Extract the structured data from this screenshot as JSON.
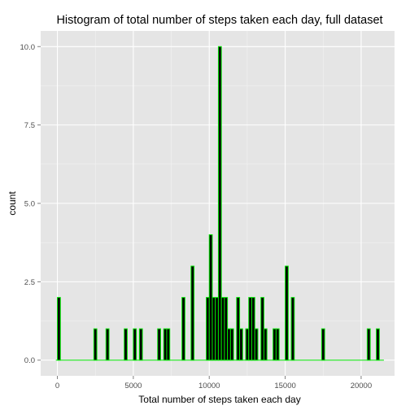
{
  "chart_data": {
    "type": "bar",
    "title": "Histogram of total number of steps taken each day, full dataset",
    "xlabel": "Total number of steps taken each day",
    "ylabel": "count",
    "xlim": [
      -1100,
      22200
    ],
    "ylim": [
      -0.5,
      10.5
    ],
    "x_ticks": [
      0,
      5000,
      10000,
      15000,
      20000
    ],
    "x_tick_labels": [
      "0",
      "5000",
      "10000",
      "15000",
      "20000"
    ],
    "y_ticks": [
      0,
      2.5,
      5,
      7.5,
      10
    ],
    "y_tick_labels": [
      "0.0",
      "2.5",
      "5.0",
      "7.5",
      "10.0"
    ],
    "bin_width": 200,
    "x_range": [
      -100,
      21500
    ],
    "bins": [
      {
        "x": 100,
        "count": 2
      },
      {
        "x": 2500,
        "count": 1
      },
      {
        "x": 3300,
        "count": 1
      },
      {
        "x": 4500,
        "count": 1
      },
      {
        "x": 5100,
        "count": 1
      },
      {
        "x": 5500,
        "count": 1
      },
      {
        "x": 6700,
        "count": 1
      },
      {
        "x": 7100,
        "count": 1
      },
      {
        "x": 7300,
        "count": 1
      },
      {
        "x": 8300,
        "count": 2
      },
      {
        "x": 8900,
        "count": 3
      },
      {
        "x": 9900,
        "count": 2
      },
      {
        "x": 10100,
        "count": 4
      },
      {
        "x": 10300,
        "count": 2
      },
      {
        "x": 10500,
        "count": 2
      },
      {
        "x": 10700,
        "count": 10
      },
      {
        "x": 10900,
        "count": 2
      },
      {
        "x": 11100,
        "count": 2
      },
      {
        "x": 11300,
        "count": 1
      },
      {
        "x": 11500,
        "count": 1
      },
      {
        "x": 11900,
        "count": 2
      },
      {
        "x": 12100,
        "count": 1
      },
      {
        "x": 12500,
        "count": 1
      },
      {
        "x": 12700,
        "count": 2
      },
      {
        "x": 12900,
        "count": 2
      },
      {
        "x": 13100,
        "count": 1
      },
      {
        "x": 13500,
        "count": 2
      },
      {
        "x": 13700,
        "count": 1
      },
      {
        "x": 14300,
        "count": 1
      },
      {
        "x": 14500,
        "count": 1
      },
      {
        "x": 15100,
        "count": 3
      },
      {
        "x": 15500,
        "count": 2
      },
      {
        "x": 17500,
        "count": 1
      },
      {
        "x": 20500,
        "count": 1
      },
      {
        "x": 21100,
        "count": 1
      }
    ],
    "grid": true,
    "legend": "none",
    "colors": {
      "panel": "#e5e5e5",
      "grid_major": "#ffffff",
      "grid_minor": "#f2f2f2",
      "bar_fill": "#000000",
      "bar_outline": "#00e600",
      "tick_text": "#4d4d4d"
    }
  }
}
